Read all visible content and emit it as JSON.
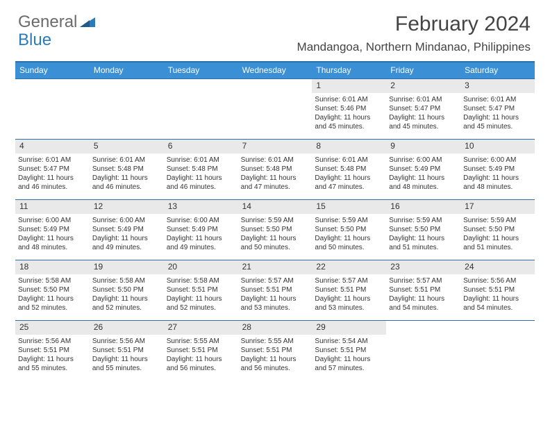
{
  "logo": {
    "part1": "General",
    "part2": "Blue"
  },
  "title": "February 2024",
  "location": "Mandangoa, Northern Mindanao, Philippines",
  "colors": {
    "header_bar": "#3b8fd4",
    "header_border": "#2c6ea8",
    "daynum_bg": "#e9e9e9",
    "text": "#333333",
    "logo_gray": "#6b6b6b",
    "logo_blue": "#2c7bb8",
    "background": "#ffffff"
  },
  "day_headers": [
    "Sunday",
    "Monday",
    "Tuesday",
    "Wednesday",
    "Thursday",
    "Friday",
    "Saturday"
  ],
  "weeks": [
    [
      {
        "n": "",
        "empty": true
      },
      {
        "n": "",
        "empty": true
      },
      {
        "n": "",
        "empty": true
      },
      {
        "n": "",
        "empty": true
      },
      {
        "n": "1",
        "sr": "Sunrise: 6:01 AM",
        "ss": "Sunset: 5:46 PM",
        "d1": "Daylight: 11 hours",
        "d2": "and 45 minutes."
      },
      {
        "n": "2",
        "sr": "Sunrise: 6:01 AM",
        "ss": "Sunset: 5:47 PM",
        "d1": "Daylight: 11 hours",
        "d2": "and 45 minutes."
      },
      {
        "n": "3",
        "sr": "Sunrise: 6:01 AM",
        "ss": "Sunset: 5:47 PM",
        "d1": "Daylight: 11 hours",
        "d2": "and 45 minutes."
      }
    ],
    [
      {
        "n": "4",
        "sr": "Sunrise: 6:01 AM",
        "ss": "Sunset: 5:47 PM",
        "d1": "Daylight: 11 hours",
        "d2": "and 46 minutes."
      },
      {
        "n": "5",
        "sr": "Sunrise: 6:01 AM",
        "ss": "Sunset: 5:48 PM",
        "d1": "Daylight: 11 hours",
        "d2": "and 46 minutes."
      },
      {
        "n": "6",
        "sr": "Sunrise: 6:01 AM",
        "ss": "Sunset: 5:48 PM",
        "d1": "Daylight: 11 hours",
        "d2": "and 46 minutes."
      },
      {
        "n": "7",
        "sr": "Sunrise: 6:01 AM",
        "ss": "Sunset: 5:48 PM",
        "d1": "Daylight: 11 hours",
        "d2": "and 47 minutes."
      },
      {
        "n": "8",
        "sr": "Sunrise: 6:01 AM",
        "ss": "Sunset: 5:48 PM",
        "d1": "Daylight: 11 hours",
        "d2": "and 47 minutes."
      },
      {
        "n": "9",
        "sr": "Sunrise: 6:00 AM",
        "ss": "Sunset: 5:49 PM",
        "d1": "Daylight: 11 hours",
        "d2": "and 48 minutes."
      },
      {
        "n": "10",
        "sr": "Sunrise: 6:00 AM",
        "ss": "Sunset: 5:49 PM",
        "d1": "Daylight: 11 hours",
        "d2": "and 48 minutes."
      }
    ],
    [
      {
        "n": "11",
        "sr": "Sunrise: 6:00 AM",
        "ss": "Sunset: 5:49 PM",
        "d1": "Daylight: 11 hours",
        "d2": "and 48 minutes."
      },
      {
        "n": "12",
        "sr": "Sunrise: 6:00 AM",
        "ss": "Sunset: 5:49 PM",
        "d1": "Daylight: 11 hours",
        "d2": "and 49 minutes."
      },
      {
        "n": "13",
        "sr": "Sunrise: 6:00 AM",
        "ss": "Sunset: 5:49 PM",
        "d1": "Daylight: 11 hours",
        "d2": "and 49 minutes."
      },
      {
        "n": "14",
        "sr": "Sunrise: 5:59 AM",
        "ss": "Sunset: 5:50 PM",
        "d1": "Daylight: 11 hours",
        "d2": "and 50 minutes."
      },
      {
        "n": "15",
        "sr": "Sunrise: 5:59 AM",
        "ss": "Sunset: 5:50 PM",
        "d1": "Daylight: 11 hours",
        "d2": "and 50 minutes."
      },
      {
        "n": "16",
        "sr": "Sunrise: 5:59 AM",
        "ss": "Sunset: 5:50 PM",
        "d1": "Daylight: 11 hours",
        "d2": "and 51 minutes."
      },
      {
        "n": "17",
        "sr": "Sunrise: 5:59 AM",
        "ss": "Sunset: 5:50 PM",
        "d1": "Daylight: 11 hours",
        "d2": "and 51 minutes."
      }
    ],
    [
      {
        "n": "18",
        "sr": "Sunrise: 5:58 AM",
        "ss": "Sunset: 5:50 PM",
        "d1": "Daylight: 11 hours",
        "d2": "and 52 minutes."
      },
      {
        "n": "19",
        "sr": "Sunrise: 5:58 AM",
        "ss": "Sunset: 5:50 PM",
        "d1": "Daylight: 11 hours",
        "d2": "and 52 minutes."
      },
      {
        "n": "20",
        "sr": "Sunrise: 5:58 AM",
        "ss": "Sunset: 5:51 PM",
        "d1": "Daylight: 11 hours",
        "d2": "and 52 minutes."
      },
      {
        "n": "21",
        "sr": "Sunrise: 5:57 AM",
        "ss": "Sunset: 5:51 PM",
        "d1": "Daylight: 11 hours",
        "d2": "and 53 minutes."
      },
      {
        "n": "22",
        "sr": "Sunrise: 5:57 AM",
        "ss": "Sunset: 5:51 PM",
        "d1": "Daylight: 11 hours",
        "d2": "and 53 minutes."
      },
      {
        "n": "23",
        "sr": "Sunrise: 5:57 AM",
        "ss": "Sunset: 5:51 PM",
        "d1": "Daylight: 11 hours",
        "d2": "and 54 minutes."
      },
      {
        "n": "24",
        "sr": "Sunrise: 5:56 AM",
        "ss": "Sunset: 5:51 PM",
        "d1": "Daylight: 11 hours",
        "d2": "and 54 minutes."
      }
    ],
    [
      {
        "n": "25",
        "sr": "Sunrise: 5:56 AM",
        "ss": "Sunset: 5:51 PM",
        "d1": "Daylight: 11 hours",
        "d2": "and 55 minutes."
      },
      {
        "n": "26",
        "sr": "Sunrise: 5:56 AM",
        "ss": "Sunset: 5:51 PM",
        "d1": "Daylight: 11 hours",
        "d2": "and 55 minutes."
      },
      {
        "n": "27",
        "sr": "Sunrise: 5:55 AM",
        "ss": "Sunset: 5:51 PM",
        "d1": "Daylight: 11 hours",
        "d2": "and 56 minutes."
      },
      {
        "n": "28",
        "sr": "Sunrise: 5:55 AM",
        "ss": "Sunset: 5:51 PM",
        "d1": "Daylight: 11 hours",
        "d2": "and 56 minutes."
      },
      {
        "n": "29",
        "sr": "Sunrise: 5:54 AM",
        "ss": "Sunset: 5:51 PM",
        "d1": "Daylight: 11 hours",
        "d2": "and 57 minutes."
      },
      {
        "n": "",
        "empty": true
      },
      {
        "n": "",
        "empty": true
      }
    ]
  ]
}
